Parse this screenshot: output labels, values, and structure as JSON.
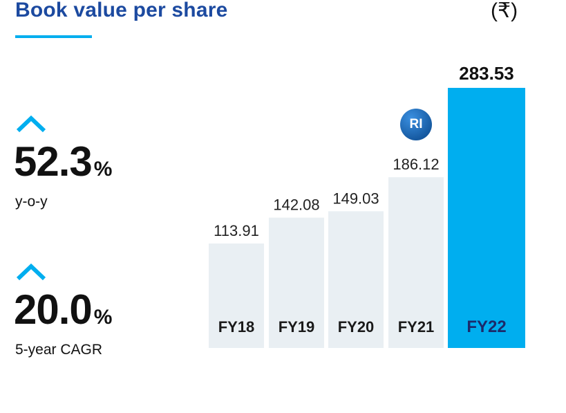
{
  "header": {
    "title": "Book value per share",
    "currency": "(₹)"
  },
  "kpis": [
    {
      "value": "52.3",
      "unit": "%",
      "label": "y-o-y"
    },
    {
      "value": "20.0",
      "unit": "%",
      "label": "5-year CAGR"
    }
  ],
  "badge": {
    "label": "RI"
  },
  "colors": {
    "title": "#1c4aa0",
    "accent": "#00aeef",
    "bar": "#e9eff3",
    "bar_highlight": "#00aeef"
  },
  "chart_data": {
    "type": "bar",
    "title": "Book value per share",
    "categories": [
      "FY18",
      "FY19",
      "FY20",
      "FY21",
      "FY22"
    ],
    "values": [
      113.91,
      142.08,
      149.03,
      186.12,
      283.53
    ],
    "value_labels": [
      "113.91",
      "142.08",
      "149.03",
      "186.12",
      "283.53"
    ],
    "highlight_index": 4,
    "ylim": [
      0,
      283.53
    ],
    "grid": false,
    "legend": "none"
  }
}
